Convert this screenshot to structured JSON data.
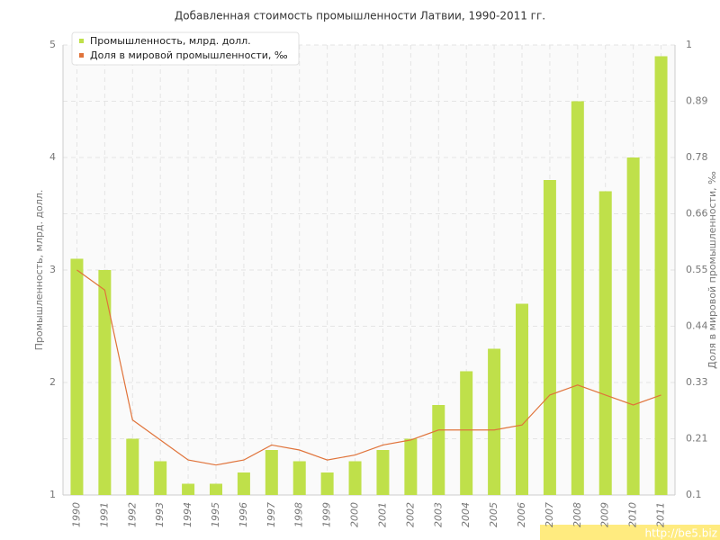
{
  "chart_data": {
    "type": "bar-line",
    "title": "Добавленная стоимость промышленности Латвии, 1990-2011 гг.",
    "categories": [
      "1990",
      "1991",
      "1992",
      "1993",
      "1994",
      "1995",
      "1996",
      "1997",
      "1998",
      "1999",
      "2000",
      "2001",
      "2002",
      "2003",
      "2004",
      "2005",
      "2006",
      "2007",
      "2008",
      "2009",
      "2010",
      "2011"
    ],
    "series": [
      {
        "name": "Промышленность, млрд. долл.",
        "color": "#bfe04a",
        "type": "bar",
        "values": [
          3.1,
          3.0,
          1.5,
          1.3,
          1.1,
          1.1,
          1.2,
          1.4,
          1.3,
          1.2,
          1.3,
          1.4,
          1.5,
          1.8,
          2.1,
          2.3,
          2.7,
          3.8,
          4.5,
          3.7,
          4.0,
          4.9
        ]
      },
      {
        "name": "Доля в мировой промышленности, ‰",
        "color": "#e0733a",
        "type": "line",
        "axis": "y2",
        "values": [
          0.55,
          0.51,
          0.25,
          0.21,
          0.17,
          0.16,
          0.17,
          0.2,
          0.19,
          0.17,
          0.18,
          0.2,
          0.21,
          0.23,
          0.23,
          0.23,
          0.24,
          0.3,
          0.32,
          0.3,
          0.28,
          0.3
        ]
      }
    ],
    "y_label": "Промышленность, млрд. долл.",
    "y2_label": "Доля в мировой промышленности, ‰",
    "ylim": [
      1,
      5
    ],
    "yticks": [
      1,
      2,
      3,
      4,
      5
    ],
    "y2lim": [
      0.1,
      1
    ],
    "y2ticks": [
      0.1,
      {
        "value": 0.2125,
        "label": "0.21"
      },
      {
        "value": 0.325,
        "label": "0.33"
      },
      {
        "value": 0.4375,
        "label": "0.44"
      },
      0.55,
      {
        "value": 0.6625,
        "label": "0.66"
      },
      {
        "value": 0.775,
        "label": "0.78"
      },
      {
        "value": 0.8875,
        "label": "0.89"
      },
      1
    ],
    "grid": true,
    "legend_position": "top-left",
    "watermark": "http://be5.biz"
  }
}
